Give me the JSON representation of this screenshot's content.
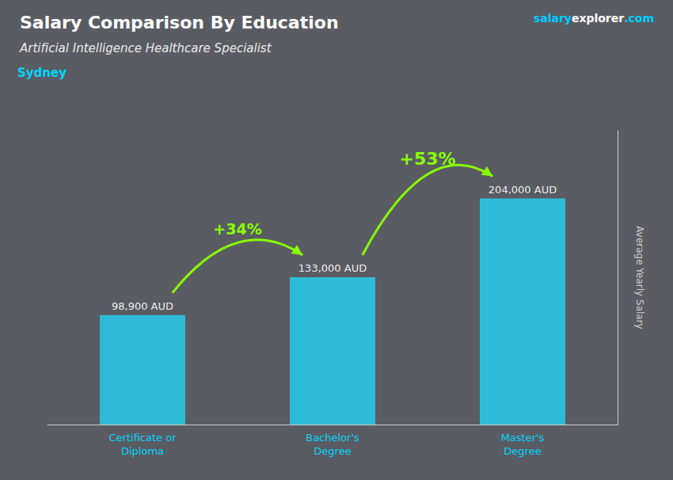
{
  "chart_data": {
    "type": "bar",
    "title": "Salary Comparison By Education",
    "subtitle": "Artificial Intelligence Healthcare Specialist",
    "city": "Sydney",
    "watermark": [
      "salary",
      "explorer",
      ".com"
    ],
    "ylabel": "Average Yearly Salary",
    "categories": [
      "Certificate or\nDiploma",
      "Bachelor's\nDegree",
      "Master's\nDegree"
    ],
    "values": [
      98900,
      133000,
      204000
    ],
    "value_labels": [
      "98,900 AUD",
      "133,000 AUD",
      "204,000 AUD"
    ],
    "data_labels": true,
    "annotations": [
      "+34%",
      "+53%"
    ],
    "color": "#29c5e6",
    "ylim": [
      0,
      265200
    ],
    "grid": false,
    "tick_labels": "x"
  }
}
